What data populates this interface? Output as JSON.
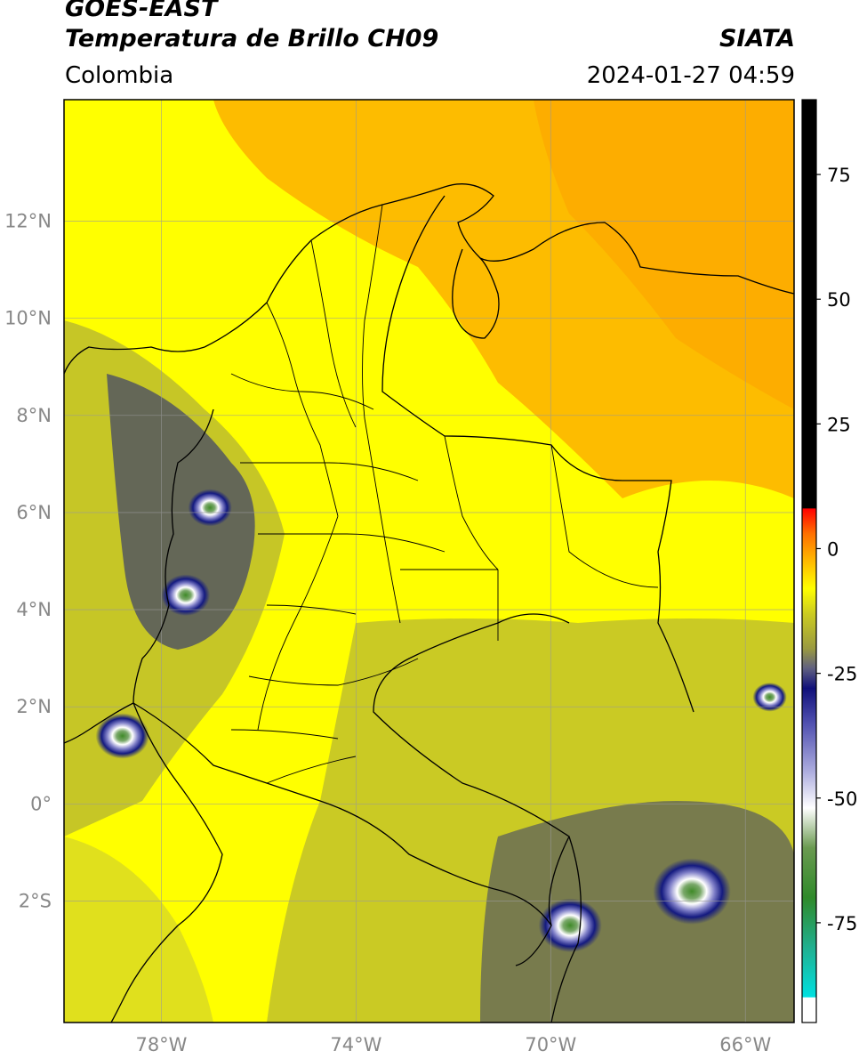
{
  "header": {
    "line1": "GOES-EAST",
    "line2": "Temperatura de Brillo CH09",
    "brand": "SIATA",
    "region": "Colombia",
    "timestamp": "2024-01-27 04:59"
  },
  "map": {
    "lon_range": [
      -80.0,
      -65.0
    ],
    "lat_range": [
      -4.5,
      14.5
    ],
    "lat_ticks": [
      {
        "v": 12,
        "label": "12°N"
      },
      {
        "v": 10,
        "label": "10°N"
      },
      {
        "v": 8,
        "label": "8°N"
      },
      {
        "v": 6,
        "label": "6°N"
      },
      {
        "v": 4,
        "label": "4°N"
      },
      {
        "v": 2,
        "label": "2°N"
      },
      {
        "v": 0,
        "label": "0°"
      },
      {
        "v": -2,
        "label": "2°S"
      }
    ],
    "lon_ticks": [
      {
        "v": -78,
        "label": "78°W"
      },
      {
        "v": -74,
        "label": "74°W"
      },
      {
        "v": -70,
        "label": "70°W"
      },
      {
        "v": -66,
        "label": "66°W"
      }
    ],
    "gridlines": true,
    "colors": {
      "warm": "#fdb000",
      "yellow": "#ffff00",
      "olive": "#b8b830",
      "navy": "#141a80",
      "white": "#ffffff",
      "green": "#3f8a28"
    },
    "cold_clouds": [
      {
        "lon": -78.8,
        "lat": 1.4,
        "r": 0.55
      },
      {
        "lon": -77.5,
        "lat": 4.3,
        "r": 0.5
      },
      {
        "lon": -77.0,
        "lat": 6.1,
        "r": 0.45
      },
      {
        "lon": -69.6,
        "lat": -2.5,
        "r": 0.65
      },
      {
        "lon": -67.1,
        "lat": -1.8,
        "r": 0.8
      },
      {
        "lon": -65.5,
        "lat": 2.2,
        "r": 0.35
      }
    ]
  },
  "colorbar": {
    "min": -95,
    "max": 90,
    "ticks": [
      75,
      50,
      25,
      0,
      -25,
      -50,
      -75
    ],
    "stops": [
      {
        "v": -95,
        "c": "#ffffff"
      },
      {
        "v": -90,
        "c": "#ffffff"
      },
      {
        "v": -89.9,
        "c": "#00e0e0"
      },
      {
        "v": -80,
        "c": "#20b090"
      },
      {
        "v": -70,
        "c": "#2f8a2a"
      },
      {
        "v": -60,
        "c": "#6a9a50"
      },
      {
        "v": -52,
        "c": "#ffffff"
      },
      {
        "v": -45,
        "c": "#b0b0e0"
      },
      {
        "v": -35,
        "c": "#5050b0"
      },
      {
        "v": -28,
        "c": "#10107a"
      },
      {
        "v": -24,
        "c": "#606080"
      },
      {
        "v": -20,
        "c": "#9a9a40"
      },
      {
        "v": -13,
        "c": "#cccc20"
      },
      {
        "v": -8,
        "c": "#ffff00"
      },
      {
        "v": -3,
        "c": "#ffc000"
      },
      {
        "v": 3,
        "c": "#ff7000"
      },
      {
        "v": 8,
        "c": "#ff0000"
      },
      {
        "v": 8.1,
        "c": "#000000"
      },
      {
        "v": 90,
        "c": "#000000"
      }
    ]
  }
}
